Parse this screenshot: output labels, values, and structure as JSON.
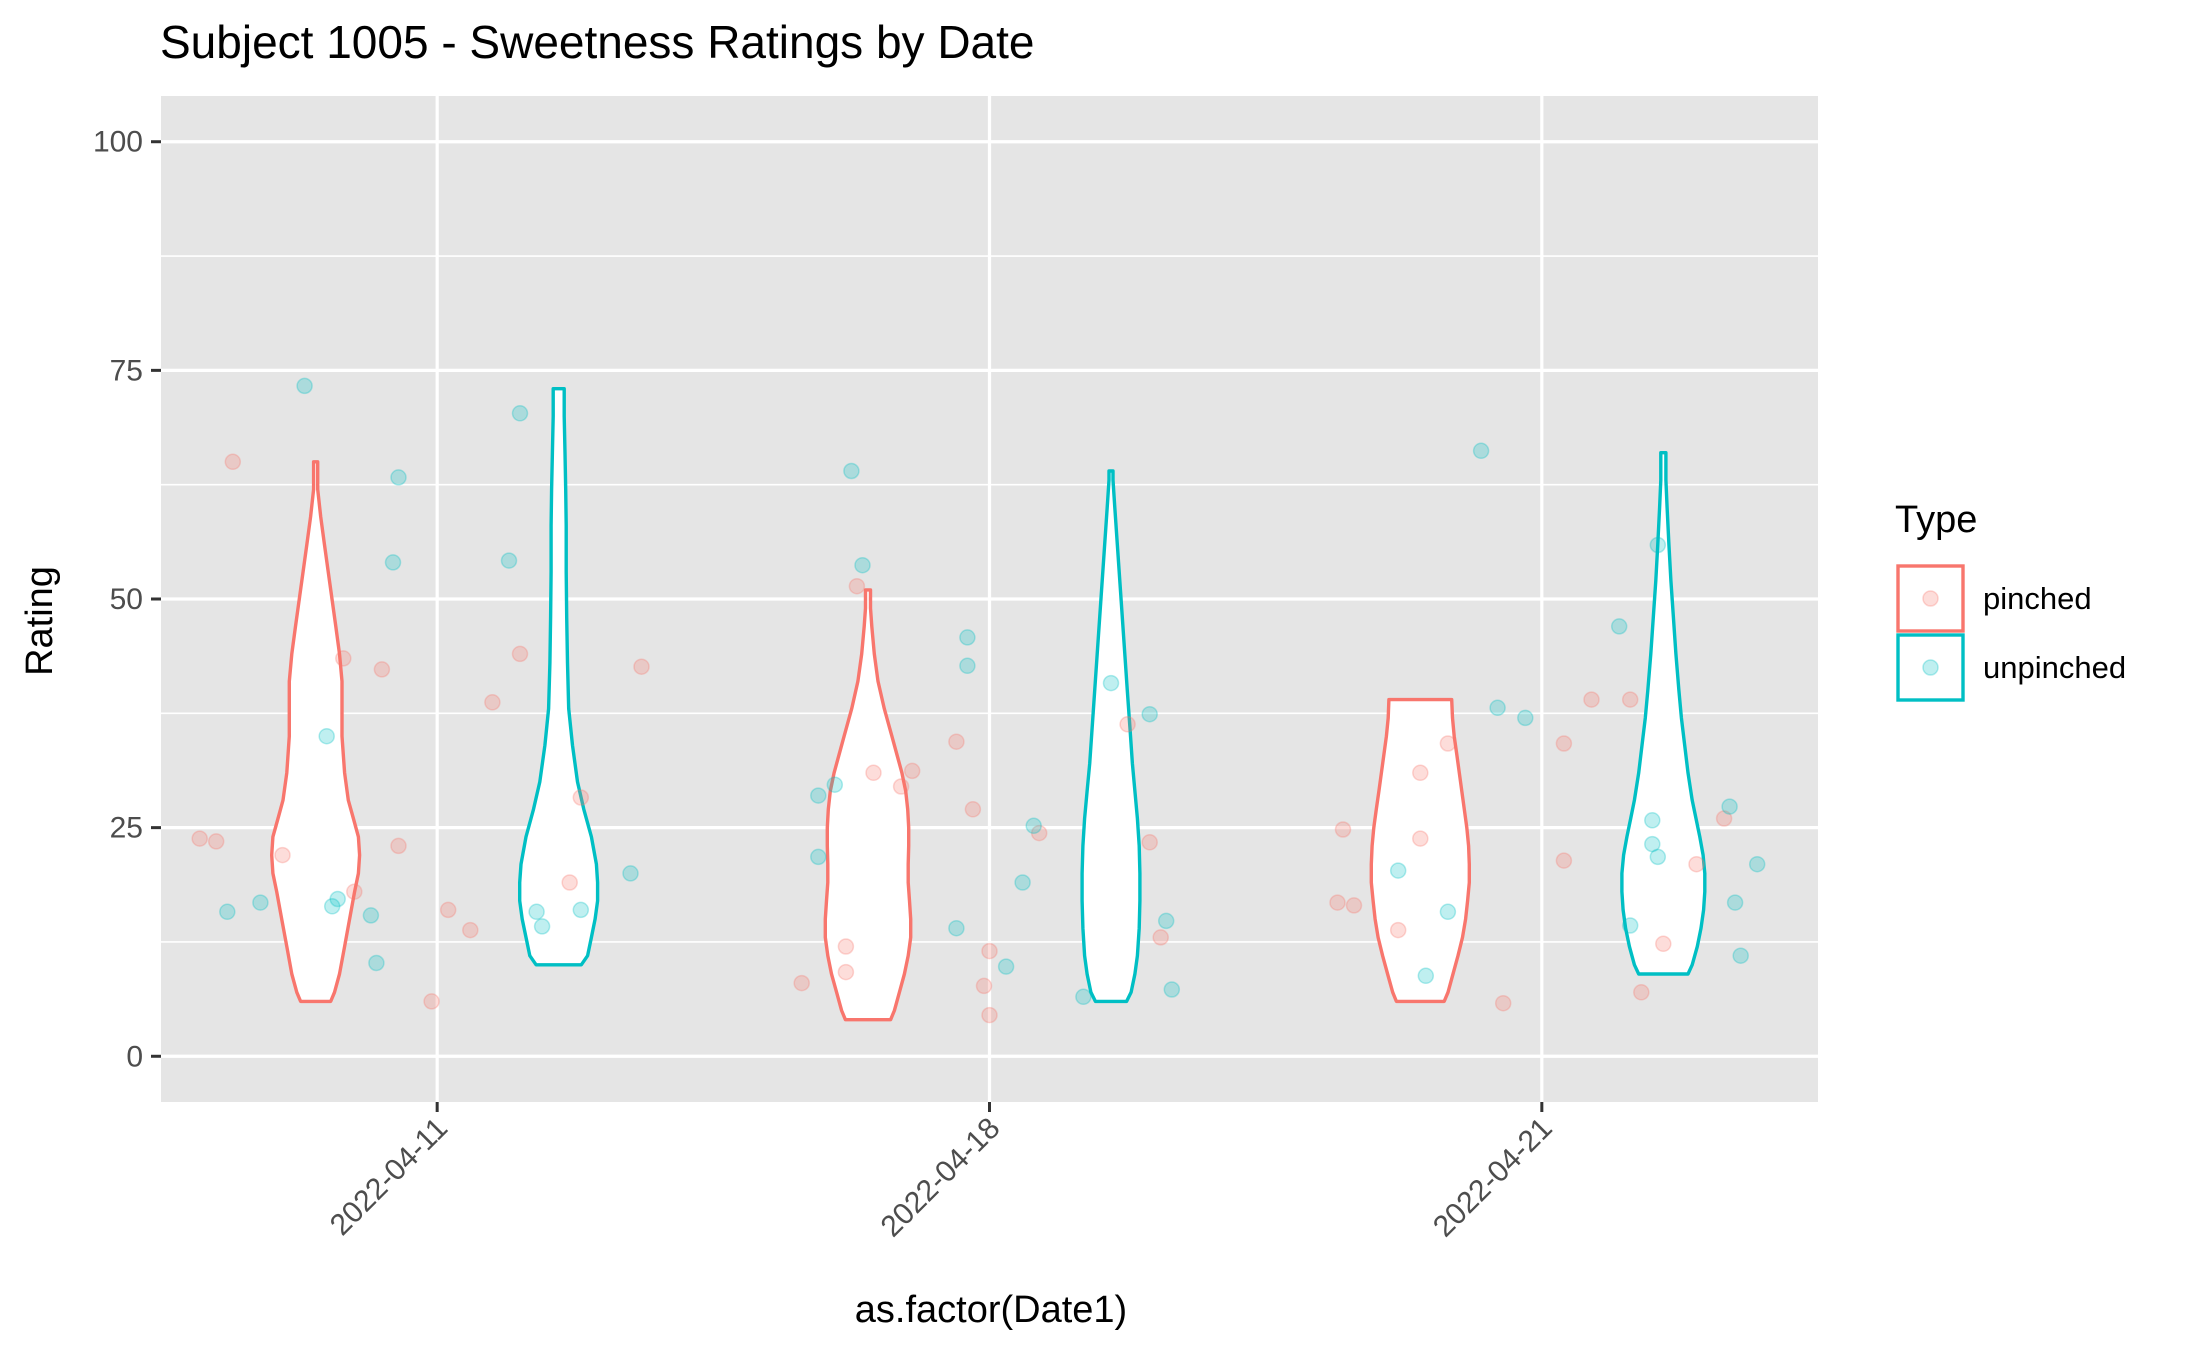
{
  "chart_data": {
    "type": "violin",
    "title": "Subject 1005 - Sweetness Ratings by Date",
    "xlabel": "as.factor(Date1)",
    "ylabel": "Rating",
    "ylim": [
      -5,
      105
    ],
    "yticks": [
      0,
      25,
      50,
      75,
      100
    ],
    "categories": [
      "2022-04-11",
      "2022-04-18",
      "2022-04-21"
    ],
    "legend": {
      "title": "Type",
      "position": "right",
      "entries": [
        {
          "key": "pinched",
          "label": "pinched",
          "color": "#F8766D"
        },
        {
          "key": "unpinched",
          "label": "unpinched",
          "color": "#00BFC4"
        }
      ]
    },
    "violins": [
      {
        "date": "2022-04-11",
        "type": "pinched",
        "profile": [
          [
            6,
            0.6
          ],
          [
            7,
            0.75
          ],
          [
            9,
            0.95
          ],
          [
            12,
            1.15
          ],
          [
            15,
            1.35
          ],
          [
            18,
            1.55
          ],
          [
            20,
            1.7
          ],
          [
            22,
            1.75
          ],
          [
            24,
            1.7
          ],
          [
            26,
            1.5
          ],
          [
            28,
            1.3
          ],
          [
            31,
            1.15
          ],
          [
            35,
            1.05
          ],
          [
            38,
            1.05
          ],
          [
            41,
            1.05
          ],
          [
            44,
            0.95
          ],
          [
            47,
            0.8
          ],
          [
            50,
            0.65
          ],
          [
            53,
            0.5
          ],
          [
            56,
            0.35
          ],
          [
            59,
            0.2
          ],
          [
            62,
            0.08
          ],
          [
            65,
            0.08
          ]
        ]
      },
      {
        "date": "2022-04-11",
        "type": "unpinched",
        "profile": [
          [
            10,
            0.9
          ],
          [
            11,
            1.15
          ],
          [
            13,
            1.3
          ],
          [
            15,
            1.45
          ],
          [
            17,
            1.55
          ],
          [
            19,
            1.55
          ],
          [
            21,
            1.5
          ],
          [
            24,
            1.3
          ],
          [
            27,
            1.0
          ],
          [
            30,
            0.75
          ],
          [
            34,
            0.55
          ],
          [
            38,
            0.4
          ],
          [
            43,
            0.35
          ],
          [
            48,
            0.32
          ],
          [
            53,
            0.3
          ],
          [
            58,
            0.3
          ],
          [
            62,
            0.28
          ],
          [
            66,
            0.25
          ],
          [
            70,
            0.22
          ],
          [
            73,
            0.22
          ]
        ]
      },
      {
        "date": "2022-04-18",
        "type": "pinched",
        "profile": [
          [
            4,
            0.9
          ],
          [
            5,
            1.05
          ],
          [
            7,
            1.25
          ],
          [
            9,
            1.45
          ],
          [
            11,
            1.6
          ],
          [
            13,
            1.7
          ],
          [
            15,
            1.7
          ],
          [
            17,
            1.65
          ],
          [
            19,
            1.6
          ],
          [
            21,
            1.6
          ],
          [
            23,
            1.62
          ],
          [
            25,
            1.62
          ],
          [
            27,
            1.58
          ],
          [
            29,
            1.5
          ],
          [
            31,
            1.35
          ],
          [
            33,
            1.15
          ],
          [
            35,
            0.95
          ],
          [
            38,
            0.65
          ],
          [
            41,
            0.4
          ],
          [
            44,
            0.25
          ],
          [
            47,
            0.15
          ],
          [
            49,
            0.1
          ],
          [
            51,
            0.1
          ]
        ]
      },
      {
        "date": "2022-04-18",
        "type": "unpinched",
        "profile": [
          [
            6,
            0.62
          ],
          [
            7,
            0.8
          ],
          [
            9,
            0.95
          ],
          [
            11,
            1.05
          ],
          [
            14,
            1.12
          ],
          [
            17,
            1.15
          ],
          [
            20,
            1.15
          ],
          [
            23,
            1.12
          ],
          [
            26,
            1.05
          ],
          [
            29,
            0.95
          ],
          [
            32,
            0.85
          ],
          [
            36,
            0.75
          ],
          [
            40,
            0.65
          ],
          [
            44,
            0.55
          ],
          [
            48,
            0.45
          ],
          [
            52,
            0.35
          ],
          [
            56,
            0.25
          ],
          [
            60,
            0.15
          ],
          [
            63,
            0.08
          ],
          [
            64,
            0.08
          ]
        ]
      },
      {
        "date": "2022-04-21",
        "type": "pinched",
        "profile": [
          [
            6,
            0.95
          ],
          [
            7,
            1.1
          ],
          [
            9,
            1.3
          ],
          [
            11,
            1.5
          ],
          [
            13,
            1.68
          ],
          [
            15,
            1.8
          ],
          [
            17,
            1.88
          ],
          [
            19,
            1.95
          ],
          [
            21,
            1.95
          ],
          [
            23,
            1.92
          ],
          [
            25,
            1.85
          ],
          [
            27,
            1.75
          ],
          [
            29,
            1.65
          ],
          [
            31,
            1.55
          ],
          [
            33,
            1.45
          ],
          [
            35,
            1.35
          ],
          [
            37,
            1.28
          ],
          [
            39,
            1.25
          ]
        ]
      },
      {
        "date": "2022-04-21",
        "type": "unpinched",
        "profile": [
          [
            9,
            0.98
          ],
          [
            10,
            1.15
          ],
          [
            12,
            1.35
          ],
          [
            14,
            1.5
          ],
          [
            16,
            1.6
          ],
          [
            18,
            1.65
          ],
          [
            20,
            1.65
          ],
          [
            22,
            1.58
          ],
          [
            24,
            1.45
          ],
          [
            26,
            1.3
          ],
          [
            28,
            1.15
          ],
          [
            31,
            0.98
          ],
          [
            34,
            0.85
          ],
          [
            37,
            0.72
          ],
          [
            40,
            0.62
          ],
          [
            44,
            0.5
          ],
          [
            48,
            0.4
          ],
          [
            52,
            0.3
          ],
          [
            56,
            0.22
          ],
          [
            60,
            0.15
          ],
          [
            63,
            0.1
          ],
          [
            66,
            0.1
          ]
        ]
      }
    ],
    "points": [
      {
        "date": "2022-04-11",
        "type": "pinched",
        "dx": -0.4,
        "y": 23.5
      },
      {
        "date": "2022-04-11",
        "type": "pinched",
        "dx": -0.37,
        "y": 65
      },
      {
        "date": "2022-04-11",
        "type": "pinched",
        "dx": -0.28,
        "y": 22
      },
      {
        "date": "2022-04-11",
        "type": "pinched",
        "dx": -0.17,
        "y": 43.5
      },
      {
        "date": "2022-04-11",
        "type": "pinched",
        "dx": -0.15,
        "y": 18
      },
      {
        "date": "2022-04-11",
        "type": "pinched",
        "dx": -0.1,
        "y": 42.3
      },
      {
        "date": "2022-04-11",
        "type": "pinched",
        "dx": -0.07,
        "y": 23
      },
      {
        "date": "2022-04-11",
        "type": "pinched",
        "dx": -0.43,
        "y": 23.8
      },
      {
        "date": "2022-04-11",
        "type": "pinched",
        "dx": 0.02,
        "y": 16
      },
      {
        "date": "2022-04-11",
        "type": "pinched",
        "dx": -0.01,
        "y": 6
      },
      {
        "date": "2022-04-11",
        "type": "pinched",
        "dx": 0.06,
        "y": 13.8
      },
      {
        "date": "2022-04-11",
        "type": "pinched",
        "dx": 0.1,
        "y": 38.7
      },
      {
        "date": "2022-04-11",
        "type": "pinched",
        "dx": 0.15,
        "y": 44
      },
      {
        "date": "2022-04-11",
        "type": "pinched",
        "dx": 0.24,
        "y": 19
      },
      {
        "date": "2022-04-11",
        "type": "pinched",
        "dx": 0.26,
        "y": 28.3
      },
      {
        "date": "2022-04-11",
        "type": "pinched",
        "dx": 0.37,
        "y": 42.6
      },
      {
        "date": "2022-04-11",
        "type": "unpinched",
        "dx": -0.38,
        "y": 15.8
      },
      {
        "date": "2022-04-11",
        "type": "unpinched",
        "dx": -0.32,
        "y": 16.8
      },
      {
        "date": "2022-04-11",
        "type": "unpinched",
        "dx": -0.24,
        "y": 73.3
      },
      {
        "date": "2022-04-11",
        "type": "unpinched",
        "dx": -0.2,
        "y": 35
      },
      {
        "date": "2022-04-11",
        "type": "unpinched",
        "dx": -0.19,
        "y": 16.4
      },
      {
        "date": "2022-04-11",
        "type": "unpinched",
        "dx": -0.18,
        "y": 17.2
      },
      {
        "date": "2022-04-11",
        "type": "unpinched",
        "dx": -0.12,
        "y": 15.4
      },
      {
        "date": "2022-04-11",
        "type": "unpinched",
        "dx": -0.11,
        "y": 10.2
      },
      {
        "date": "2022-04-11",
        "type": "unpinched",
        "dx": -0.08,
        "y": 54
      },
      {
        "date": "2022-04-11",
        "type": "unpinched",
        "dx": -0.07,
        "y": 63.3
      },
      {
        "date": "2022-04-11",
        "type": "unpinched",
        "dx": 0.13,
        "y": 54.2
      },
      {
        "date": "2022-04-11",
        "type": "unpinched",
        "dx": 0.15,
        "y": 70.3
      },
      {
        "date": "2022-04-11",
        "type": "unpinched",
        "dx": 0.18,
        "y": 15.8
      },
      {
        "date": "2022-04-11",
        "type": "unpinched",
        "dx": 0.19,
        "y": 14.2
      },
      {
        "date": "2022-04-11",
        "type": "unpinched",
        "dx": 0.26,
        "y": 16
      },
      {
        "date": "2022-04-11",
        "type": "unpinched",
        "dx": 0.35,
        "y": 20
      },
      {
        "date": "2022-04-18",
        "type": "pinched",
        "dx": -0.34,
        "y": 8
      },
      {
        "date": "2022-04-18",
        "type": "pinched",
        "dx": -0.26,
        "y": 12
      },
      {
        "date": "2022-04-18",
        "type": "pinched",
        "dx": -0.26,
        "y": 9.2
      },
      {
        "date": "2022-04-18",
        "type": "pinched",
        "dx": -0.24,
        "y": 51.4
      },
      {
        "date": "2022-04-18",
        "type": "pinched",
        "dx": -0.21,
        "y": 31
      },
      {
        "date": "2022-04-18",
        "type": "pinched",
        "dx": -0.16,
        "y": 29.5
      },
      {
        "date": "2022-04-18",
        "type": "pinched",
        "dx": -0.14,
        "y": 31.2
      },
      {
        "date": "2022-04-18",
        "type": "pinched",
        "dx": -0.06,
        "y": 34.4
      },
      {
        "date": "2022-04-18",
        "type": "pinched",
        "dx": -0.03,
        "y": 27
      },
      {
        "date": "2022-04-18",
        "type": "pinched",
        "dx": -0.01,
        "y": 7.7
      },
      {
        "date": "2022-04-18",
        "type": "pinched",
        "dx": 0.0,
        "y": 11.5
      },
      {
        "date": "2022-04-18",
        "type": "pinched",
        "dx": 0.0,
        "y": 4.5
      },
      {
        "date": "2022-04-18",
        "type": "pinched",
        "dx": 0.09,
        "y": 24.4
      },
      {
        "date": "2022-04-18",
        "type": "pinched",
        "dx": 0.25,
        "y": 36.3
      },
      {
        "date": "2022-04-18",
        "type": "pinched",
        "dx": 0.29,
        "y": 23.4
      },
      {
        "date": "2022-04-18",
        "type": "pinched",
        "dx": 0.31,
        "y": 13
      },
      {
        "date": "2022-04-18",
        "type": "unpinched",
        "dx": -0.31,
        "y": 28.5
      },
      {
        "date": "2022-04-18",
        "type": "unpinched",
        "dx": -0.31,
        "y": 21.8
      },
      {
        "date": "2022-04-18",
        "type": "unpinched",
        "dx": -0.28,
        "y": 29.7
      },
      {
        "date": "2022-04-18",
        "type": "unpinched",
        "dx": -0.25,
        "y": 64
      },
      {
        "date": "2022-04-18",
        "type": "unpinched",
        "dx": -0.23,
        "y": 53.7
      },
      {
        "date": "2022-04-18",
        "type": "unpinched",
        "dx": -0.06,
        "y": 14
      },
      {
        "date": "2022-04-18",
        "type": "unpinched",
        "dx": -0.04,
        "y": 45.8
      },
      {
        "date": "2022-04-18",
        "type": "unpinched",
        "dx": -0.04,
        "y": 42.7
      },
      {
        "date": "2022-04-18",
        "type": "unpinched",
        "dx": 0.03,
        "y": 9.8
      },
      {
        "date": "2022-04-18",
        "type": "unpinched",
        "dx": 0.06,
        "y": 19
      },
      {
        "date": "2022-04-18",
        "type": "unpinched",
        "dx": 0.08,
        "y": 25.2
      },
      {
        "date": "2022-04-18",
        "type": "unpinched",
        "dx": 0.17,
        "y": 6.5
      },
      {
        "date": "2022-04-18",
        "type": "unpinched",
        "dx": 0.22,
        "y": 40.8
      },
      {
        "date": "2022-04-18",
        "type": "unpinched",
        "dx": 0.29,
        "y": 37.4
      },
      {
        "date": "2022-04-18",
        "type": "unpinched",
        "dx": 0.32,
        "y": 14.8
      },
      {
        "date": "2022-04-18",
        "type": "unpinched",
        "dx": 0.33,
        "y": 7.3
      },
      {
        "date": "2022-04-21",
        "type": "pinched",
        "dx": -0.37,
        "y": 16.8
      },
      {
        "date": "2022-04-21",
        "type": "pinched",
        "dx": -0.36,
        "y": 24.8
      },
      {
        "date": "2022-04-21",
        "type": "pinched",
        "dx": -0.34,
        "y": 16.5
      },
      {
        "date": "2022-04-21",
        "type": "pinched",
        "dx": -0.26,
        "y": 13.8
      },
      {
        "date": "2022-04-21",
        "type": "pinched",
        "dx": -0.22,
        "y": 23.8
      },
      {
        "date": "2022-04-21",
        "type": "pinched",
        "dx": -0.22,
        "y": 31
      },
      {
        "date": "2022-04-21",
        "type": "pinched",
        "dx": -0.17,
        "y": 34.2
      },
      {
        "date": "2022-04-21",
        "type": "pinched",
        "dx": -0.07,
        "y": 5.8
      },
      {
        "date": "2022-04-21",
        "type": "pinched",
        "dx": 0.04,
        "y": 21.4
      },
      {
        "date": "2022-04-21",
        "type": "pinched",
        "dx": 0.04,
        "y": 34.2
      },
      {
        "date": "2022-04-21",
        "type": "pinched",
        "dx": 0.09,
        "y": 39
      },
      {
        "date": "2022-04-21",
        "type": "pinched",
        "dx": 0.16,
        "y": 39
      },
      {
        "date": "2022-04-21",
        "type": "pinched",
        "dx": 0.18,
        "y": 7
      },
      {
        "date": "2022-04-21",
        "type": "pinched",
        "dx": 0.22,
        "y": 12.3
      },
      {
        "date": "2022-04-21",
        "type": "pinched",
        "dx": 0.28,
        "y": 21
      },
      {
        "date": "2022-04-21",
        "type": "pinched",
        "dx": 0.33,
        "y": 26
      },
      {
        "date": "2022-04-21",
        "type": "unpinched",
        "dx": -0.26,
        "y": 20.3
      },
      {
        "date": "2022-04-21",
        "type": "unpinched",
        "dx": -0.21,
        "y": 8.8
      },
      {
        "date": "2022-04-21",
        "type": "unpinched",
        "dx": -0.17,
        "y": 15.8
      },
      {
        "date": "2022-04-21",
        "type": "unpinched",
        "dx": -0.11,
        "y": 66.2
      },
      {
        "date": "2022-04-21",
        "type": "unpinched",
        "dx": -0.08,
        "y": 38.1
      },
      {
        "date": "2022-04-21",
        "type": "unpinched",
        "dx": -0.03,
        "y": 37
      },
      {
        "date": "2022-04-21",
        "type": "unpinched",
        "dx": 0.14,
        "y": 47
      },
      {
        "date": "2022-04-21",
        "type": "unpinched",
        "dx": 0.16,
        "y": 14.3
      },
      {
        "date": "2022-04-21",
        "type": "unpinched",
        "dx": 0.2,
        "y": 25.8
      },
      {
        "date": "2022-04-21",
        "type": "unpinched",
        "dx": 0.2,
        "y": 23.2
      },
      {
        "date": "2022-04-21",
        "type": "unpinched",
        "dx": 0.21,
        "y": 21.8
      },
      {
        "date": "2022-04-21",
        "type": "unpinched",
        "dx": 0.21,
        "y": 55.9
      },
      {
        "date": "2022-04-21",
        "type": "unpinched",
        "dx": 0.34,
        "y": 27.3
      },
      {
        "date": "2022-04-21",
        "type": "unpinched",
        "dx": 0.35,
        "y": 16.8
      },
      {
        "date": "2022-04-21",
        "type": "unpinched",
        "dx": 0.36,
        "y": 11
      },
      {
        "date": "2022-04-21",
        "type": "unpinched",
        "dx": 0.39,
        "y": 21
      }
    ]
  }
}
